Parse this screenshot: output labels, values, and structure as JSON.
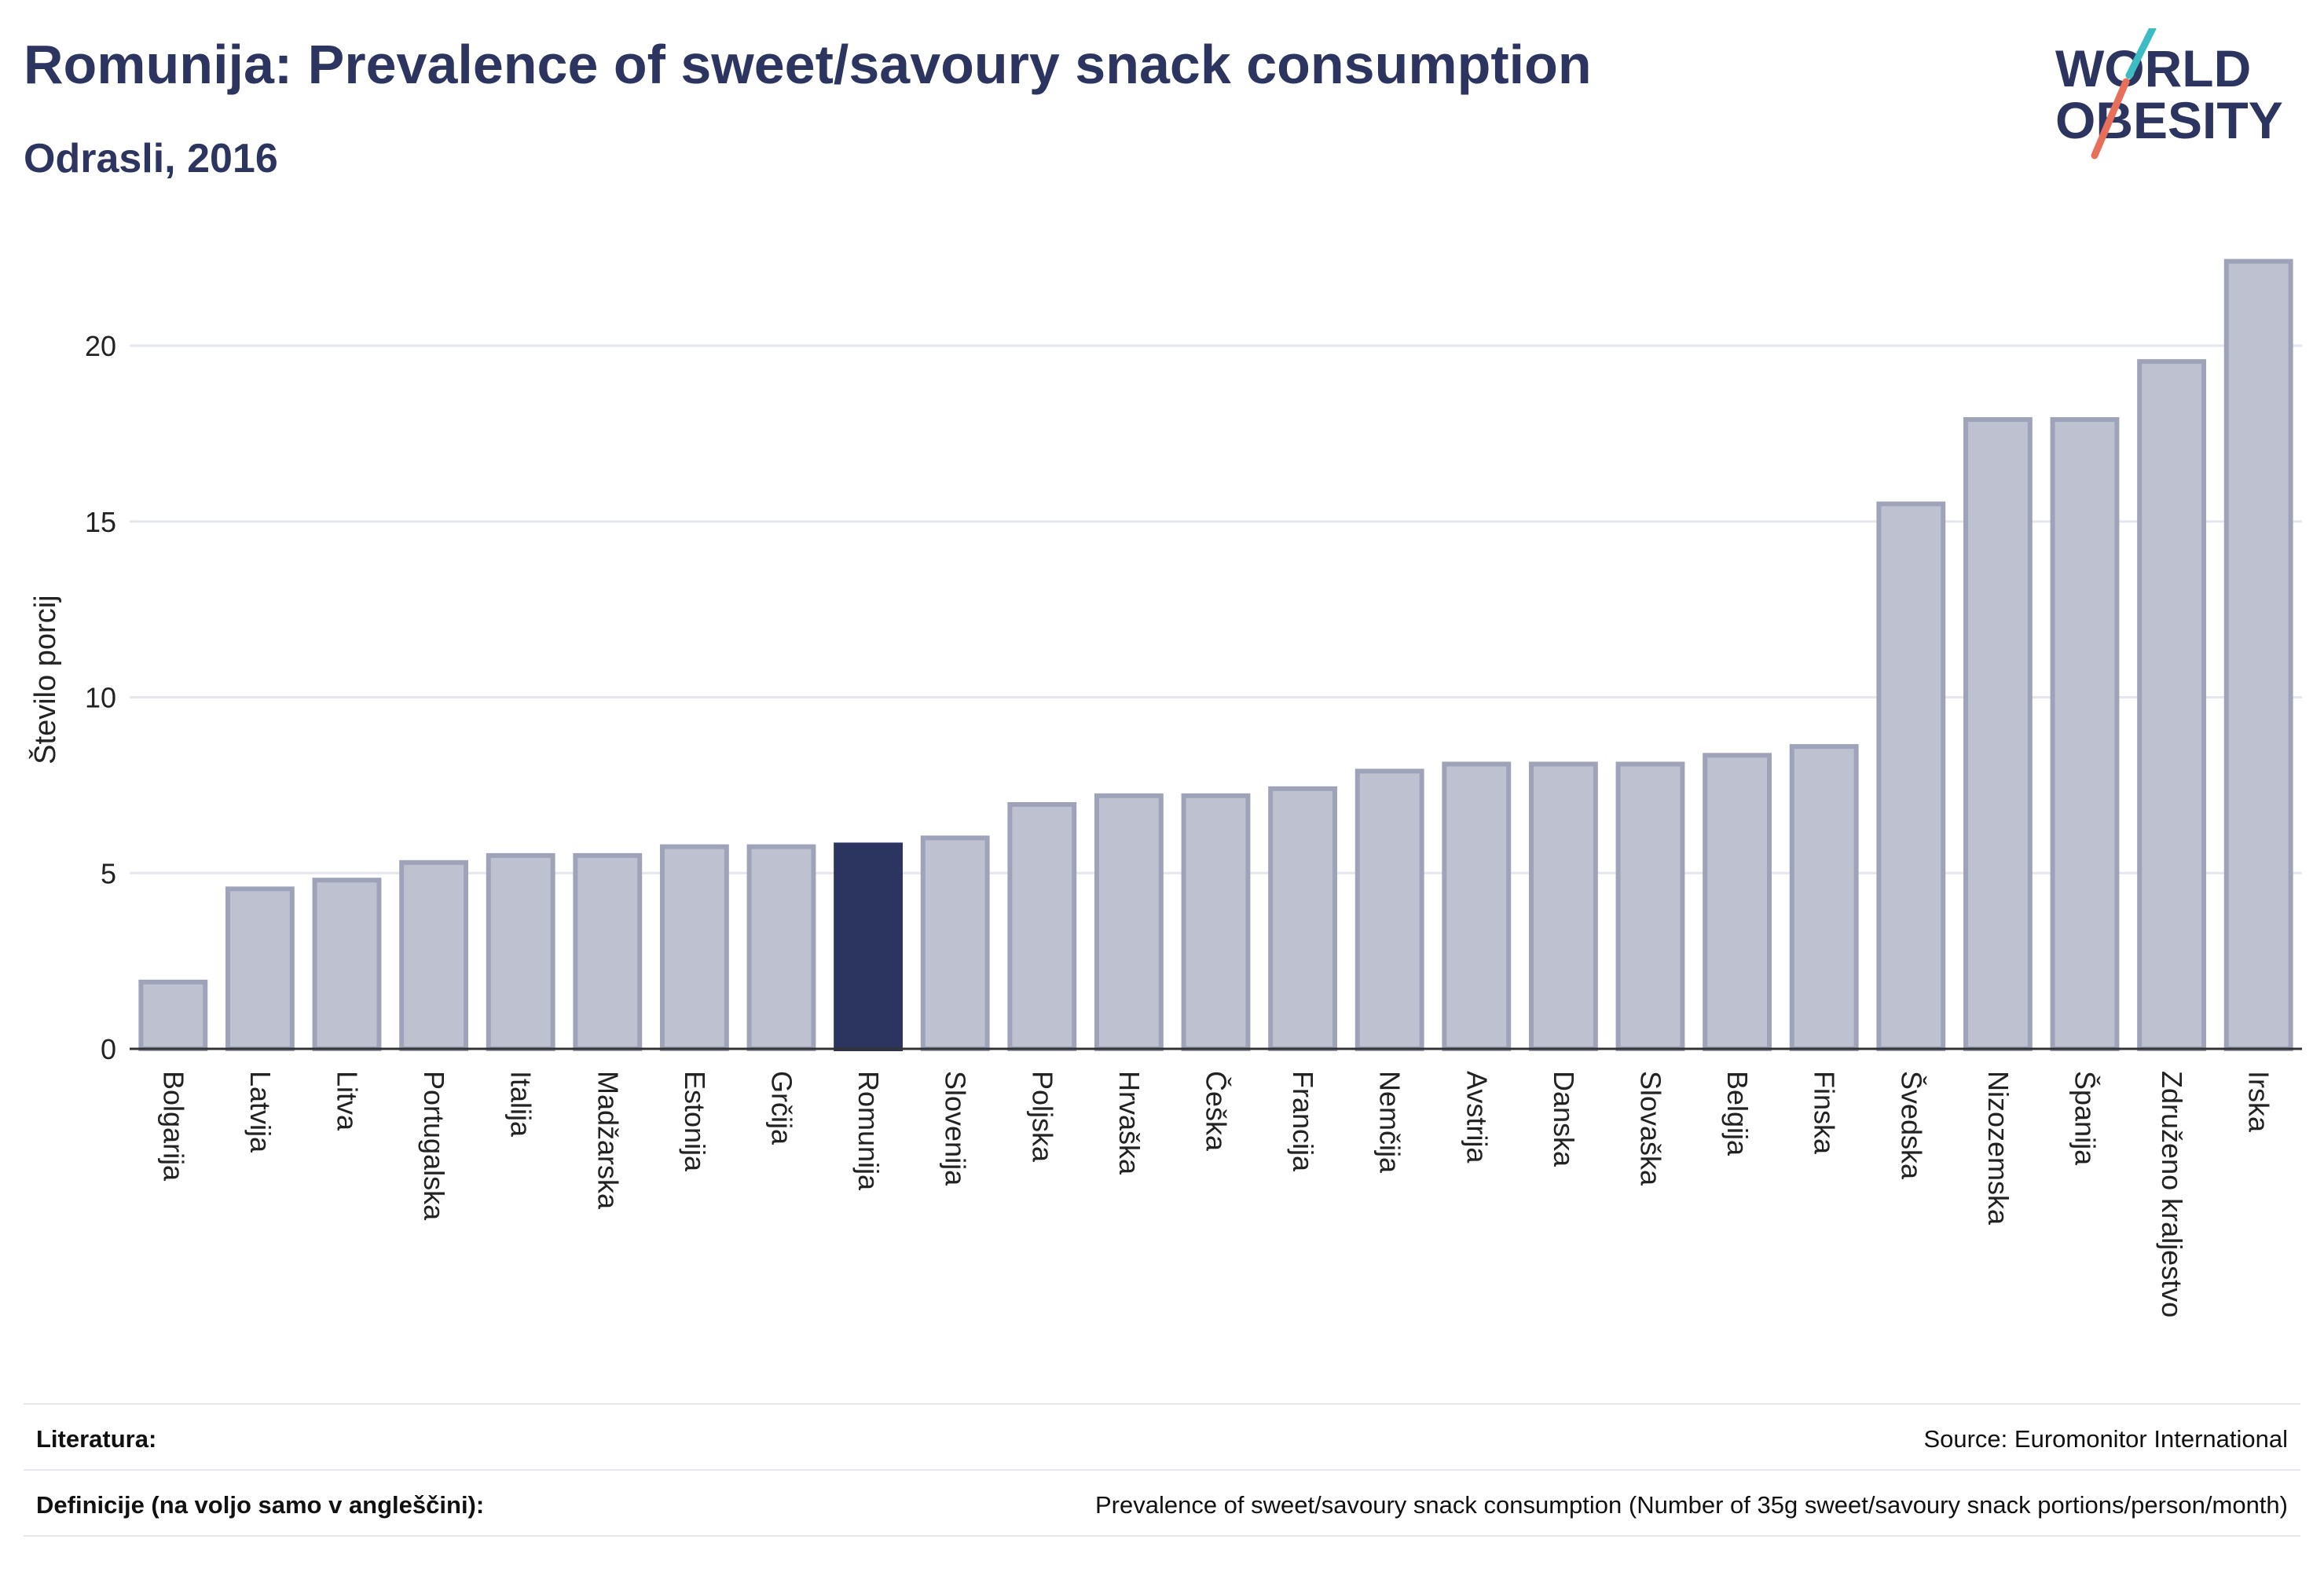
{
  "header": {
    "title": "Romunija: Prevalence of sweet/savoury snack consumption",
    "subtitle": "Odrasli, 2016",
    "logo_text_line1": "WORLD",
    "logo_text_line2": "OBESITY"
  },
  "colors": {
    "title": "#2b355f",
    "bar_default": "#bec1d0",
    "bar_default_stroke": "#9ea3b9",
    "bar_highlight": "#2b355f",
    "logo_teal": "#3cbcc3",
    "logo_coral": "#e8705b"
  },
  "chart_data": {
    "type": "bar",
    "ylabel": "Število porcij",
    "xlabel": "",
    "ylim": [
      0,
      23
    ],
    "yticks": [
      0,
      5,
      10,
      15,
      20
    ],
    "grid": true,
    "highlight": "Romunija",
    "categories": [
      "Bolgarija",
      "Latvija",
      "Litva",
      "Portugalska",
      "Italija",
      "Madžarska",
      "Estonija",
      "Grčija",
      "Romunija",
      "Slovenija",
      "Poljska",
      "Hrvaška",
      "Češka",
      "Francija",
      "Nemčija",
      "Avstrija",
      "Danska",
      "Slovaška",
      "Belgija",
      "Finska",
      "Švedska",
      "Nizozemska",
      "Španija",
      "Združeno kraljestvo",
      "Irska"
    ],
    "values": [
      1.9,
      4.55,
      4.8,
      5.3,
      5.5,
      5.5,
      5.75,
      5.75,
      5.8,
      6.0,
      6.95,
      7.2,
      7.2,
      7.4,
      7.9,
      8.1,
      8.1,
      8.1,
      8.35,
      8.6,
      15.5,
      17.9,
      17.9,
      19.55,
      22.4
    ]
  },
  "footer": {
    "references_label": "Literatura:",
    "references_value": "Source: Euromonitor International",
    "definitions_label": "Definicije (na voljo samo v angleščini):",
    "definitions_value": "Prevalence of sweet/savoury snack consumption (Number of 35g sweet/savoury snack portions/person/month)"
  }
}
